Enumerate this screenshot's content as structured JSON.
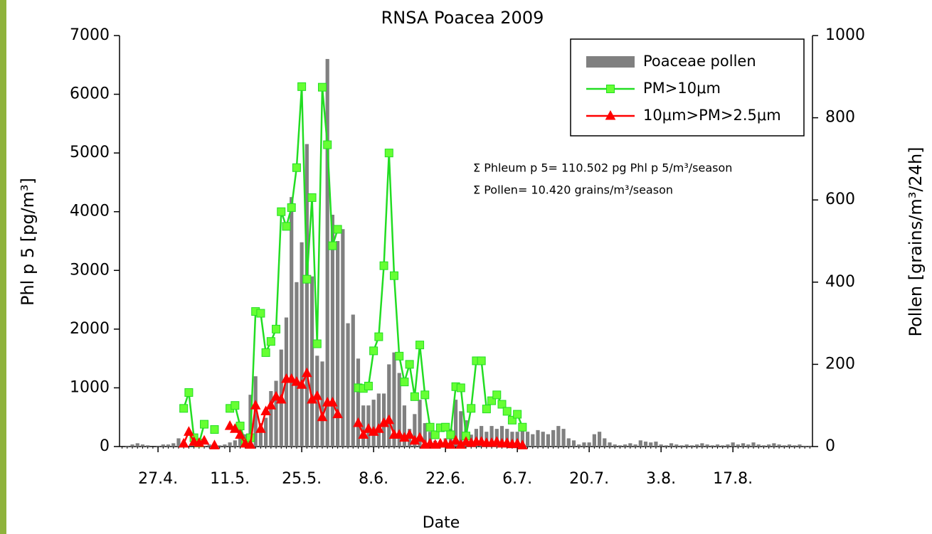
{
  "chart_data": {
    "type": "bar",
    "title": "RNSA Poacea 2009",
    "xlabel": "Date",
    "ylabel": "Phl p 5 [pg/m³]",
    "y2label": "Pollen [grains/m³/24h]",
    "annotations": [
      "Σ Phleum p 5= 110.502 pg Phl p 5/m³/season",
      "Σ Pollen= 10.420 grains/m³/season"
    ],
    "legend": "top-right",
    "ylim": [
      0,
      7000
    ],
    "yticks": [
      0,
      1000,
      2000,
      3000,
      4000,
      5000,
      6000,
      7000
    ],
    "y2lim": [
      0,
      1000
    ],
    "y2ticks": [
      0,
      200,
      400,
      600,
      800,
      1000
    ],
    "categories": [
      null,
      null,
      null,
      null,
      null,
      null,
      null,
      "27.4.",
      null,
      null,
      null,
      null,
      null,
      null,
      null,
      null,
      null,
      null,
      null,
      null,
      null,
      "11.5.",
      null,
      null,
      null,
      null,
      null,
      null,
      null,
      null,
      null,
      null,
      null,
      null,
      null,
      "25.5.",
      null,
      null,
      null,
      null,
      null,
      null,
      null,
      null,
      null,
      null,
      null,
      null,
      null,
      "8.6.",
      null,
      null,
      null,
      null,
      null,
      null,
      null,
      null,
      null,
      null,
      null,
      null,
      null,
      "22.6.",
      null,
      null,
      null,
      null,
      null,
      null,
      null,
      null,
      null,
      null,
      null,
      null,
      null,
      "6.7.",
      null,
      null,
      null,
      null,
      null,
      null,
      null,
      null,
      null,
      null,
      null,
      null,
      null,
      "20.7.",
      null,
      null,
      null,
      null,
      null,
      null,
      null,
      null,
      null,
      null,
      null,
      null,
      null,
      "3.8.",
      null,
      null,
      null,
      null,
      null,
      null,
      null,
      null,
      null,
      null,
      null,
      null,
      null,
      "17.8.",
      null,
      null,
      null,
      null,
      null,
      null,
      null,
      null,
      null,
      null,
      null,
      null,
      null,
      null,
      null
    ],
    "series": [
      {
        "name": "Poaceae pollen",
        "type": "bar",
        "axis": "y2",
        "color": "#808080",
        "values": [
          0,
          2,
          5,
          8,
          5,
          3,
          0,
          2,
          5,
          5,
          8,
          20,
          5,
          0,
          0,
          3,
          2,
          5,
          8,
          3,
          5,
          10,
          15,
          40,
          30,
          126,
          171,
          57,
          70,
          135,
          160,
          236,
          314,
          607,
          400,
          497,
          736,
          414,
          221,
          207,
          943,
          564,
          500,
          529,
          300,
          321,
          214,
          100,
          100,
          114,
          129,
          129,
          200,
          229,
          179,
          100,
          43,
          79,
          114,
          57,
          36,
          14,
          10,
          20,
          43,
          114,
          86,
          64,
          29,
          43,
          50,
          36,
          50,
          43,
          50,
          43,
          36,
          36,
          40,
          36,
          30,
          40,
          36,
          30,
          40,
          50,
          43,
          20,
          15,
          5,
          10,
          10,
          30,
          36,
          20,
          10,
          5,
          3,
          5,
          8,
          5,
          15,
          12,
          10,
          12,
          5,
          3,
          8,
          5,
          3,
          5,
          3,
          5,
          8,
          5,
          3,
          5,
          3,
          5,
          10,
          5,
          8,
          5,
          10,
          5,
          3,
          5,
          8,
          5,
          3,
          5,
          3,
          5,
          2,
          2
        ]
      },
      {
        "name": "PM>10μm",
        "type": "line",
        "marker": "square",
        "color": "#22dd22",
        "marker_color": "#66ff33",
        "values": [
          null,
          null,
          null,
          null,
          null,
          null,
          null,
          null,
          null,
          null,
          null,
          null,
          650,
          920,
          150,
          60,
          380,
          null,
          290,
          null,
          null,
          650,
          700,
          350,
          80,
          150,
          2300,
          2270,
          1600,
          1790,
          2000,
          4000,
          3750,
          4070,
          4750,
          6130,
          2850,
          4240,
          1750,
          6120,
          5140,
          3420,
          3700,
          null,
          null,
          null,
          1000,
          990,
          1030,
          1630,
          1870,
          3080,
          5000,
          2910,
          1540,
          1100,
          1400,
          850,
          1730,
          880,
          330,
          200,
          320,
          330,
          200,
          1020,
          1000,
          180,
          650,
          1460,
          1460,
          640,
          780,
          880,
          720,
          600,
          450,
          550,
          330,
          null,
          null,
          null,
          null,
          null,
          null,
          null,
          null,
          null,
          null,
          null,
          null,
          null,
          null,
          null,
          null,
          null,
          null,
          null,
          null,
          null,
          null,
          null,
          null,
          null,
          null,
          null,
          null,
          null,
          null,
          null,
          null,
          null,
          null,
          null,
          null,
          null,
          null,
          null,
          null,
          null,
          null,
          null,
          null,
          null,
          null,
          null,
          null,
          null,
          null,
          null,
          null,
          null,
          null,
          null,
          null
        ]
      },
      {
        "name": "10μm>PM>2.5μm",
        "type": "line",
        "marker": "triangle",
        "color": "#ff0000",
        "marker_color": "#ff0000",
        "values": [
          null,
          null,
          null,
          null,
          null,
          null,
          null,
          null,
          null,
          null,
          null,
          null,
          50,
          250,
          80,
          60,
          100,
          null,
          20,
          null,
          null,
          350,
          300,
          200,
          50,
          30,
          700,
          300,
          600,
          700,
          850,
          800,
          1150,
          1150,
          1100,
          1050,
          1250,
          800,
          860,
          500,
          750,
          750,
          550,
          null,
          null,
          null,
          400,
          200,
          300,
          250,
          300,
          400,
          450,
          200,
          200,
          150,
          200,
          100,
          150,
          30,
          50,
          30,
          50,
          50,
          30,
          100,
          30,
          80,
          60,
          80,
          80,
          60,
          60,
          80,
          50,
          60,
          40,
          50,
          20,
          null,
          null,
          null,
          null,
          null,
          null,
          null,
          null,
          null,
          null,
          null,
          null,
          null,
          null,
          null,
          null,
          null,
          null,
          null,
          null,
          null,
          null,
          null,
          null,
          null,
          null,
          null,
          null,
          null,
          null,
          null,
          null,
          null,
          null,
          null,
          null,
          null,
          null,
          null,
          null,
          null,
          null,
          null,
          null,
          null,
          null,
          null,
          null,
          null,
          null,
          null,
          null,
          null,
          null,
          null,
          null
        ]
      }
    ]
  }
}
